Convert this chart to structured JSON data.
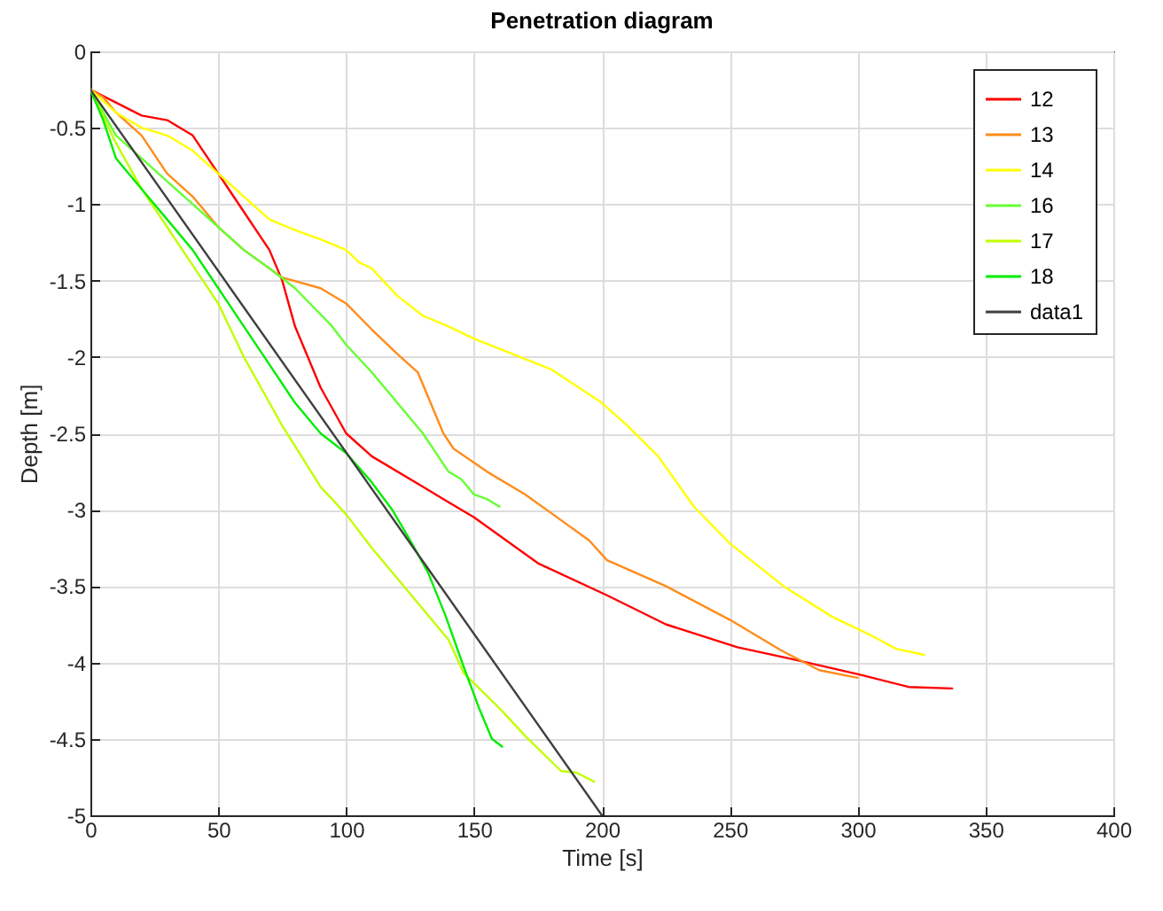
{
  "chart_data": {
    "type": "line",
    "title": "Penetration diagram",
    "xlabel": "Time [s]",
    "ylabel": "Depth [m]",
    "xlim": [
      0,
      400
    ],
    "xticks": [
      0,
      50,
      100,
      150,
      200,
      250,
      300,
      350,
      400
    ],
    "ylim": [
      -5,
      0
    ],
    "yticks": [
      -5,
      -4.5,
      -4,
      -3.5,
      -3,
      -2.5,
      -2,
      -1.5,
      -1,
      -0.5,
      0
    ],
    "grid": true,
    "legend": "top right",
    "line_style": "solid",
    "series": [
      {
        "name": "12",
        "color": "#ff0000",
        "x": [
          0,
          20,
          30,
          40,
          50,
          60,
          70,
          75,
          80,
          90,
          100,
          110,
          130,
          150,
          175,
          202,
          225,
          253,
          275,
          301,
          320,
          337
        ],
        "values": [
          -0.25,
          -0.42,
          -0.45,
          -0.55,
          -0.8,
          -1.05,
          -1.3,
          -1.5,
          -1.8,
          -2.2,
          -2.5,
          -2.65,
          -2.85,
          -3.05,
          -3.35,
          -3.56,
          -3.75,
          -3.9,
          -3.98,
          -4.08,
          -4.16,
          -4.17
        ]
      },
      {
        "name": "13",
        "color": "#ff8c1a",
        "x": [
          0,
          5,
          10,
          20,
          30,
          40,
          50,
          60,
          75,
          90,
          100,
          110,
          120,
          128,
          133,
          138,
          142,
          155,
          170,
          180,
          195,
          202,
          225,
          250,
          270,
          285,
          300
        ],
        "values": [
          -0.25,
          -0.3,
          -0.4,
          -0.55,
          -0.8,
          -0.95,
          -1.15,
          -1.3,
          -1.48,
          -1.55,
          -1.65,
          -1.82,
          -1.98,
          -2.1,
          -2.3,
          -2.5,
          -2.6,
          -2.75,
          -2.9,
          -3.02,
          -3.2,
          -3.33,
          -3.5,
          -3.72,
          -3.92,
          -4.05,
          -4.1
        ]
      },
      {
        "name": "14",
        "color": "#ffff00",
        "x": [
          0,
          10,
          20,
          30,
          40,
          50,
          60,
          70,
          80,
          90,
          100,
          105,
          110,
          120,
          130,
          140,
          150,
          165,
          180,
          200,
          210,
          222,
          236,
          250,
          271,
          290,
          305,
          315,
          326
        ],
        "values": [
          -0.25,
          -0.4,
          -0.5,
          -0.55,
          -0.65,
          -0.8,
          -0.95,
          -1.1,
          -1.17,
          -1.23,
          -1.3,
          -1.38,
          -1.42,
          -1.6,
          -1.73,
          -1.8,
          -1.88,
          -1.98,
          -2.08,
          -2.3,
          -2.45,
          -2.65,
          -2.98,
          -3.22,
          -3.5,
          -3.7,
          -3.82,
          -3.91,
          -3.95
        ]
      },
      {
        "name": "16",
        "color": "#66ff33",
        "x": [
          0,
          10,
          20,
          30,
          40,
          50,
          60,
          70,
          80,
          94,
          100,
          110,
          120,
          130,
          140,
          145,
          150,
          155,
          160
        ],
        "values": [
          -0.25,
          -0.55,
          -0.7,
          -0.85,
          -1.0,
          -1.15,
          -1.3,
          -1.42,
          -1.55,
          -1.79,
          -1.92,
          -2.1,
          -2.3,
          -2.5,
          -2.75,
          -2.8,
          -2.9,
          -2.93,
          -2.98
        ]
      },
      {
        "name": "17",
        "color": "#c0ff00",
        "x": [
          0,
          10,
          20,
          30,
          40,
          50,
          60,
          70,
          75,
          90,
          100,
          110,
          120,
          130,
          140,
          146,
          160,
          170,
          184,
          190,
          197
        ],
        "values": [
          -0.25,
          -0.6,
          -0.9,
          -1.15,
          -1.4,
          -1.65,
          -2.0,
          -2.3,
          -2.45,
          -2.85,
          -3.03,
          -3.25,
          -3.45,
          -3.65,
          -3.85,
          -4.07,
          -4.3,
          -4.48,
          -4.71,
          -4.72,
          -4.78
        ]
      },
      {
        "name": "18",
        "color": "#00ee00",
        "x": [
          0,
          5,
          10,
          15,
          20,
          30,
          40,
          50,
          60,
          70,
          80,
          90,
          100,
          110,
          118,
          125,
          132,
          139,
          146,
          152,
          157,
          161
        ],
        "values": [
          -0.25,
          -0.45,
          -0.7,
          -0.8,
          -0.9,
          -1.1,
          -1.3,
          -1.55,
          -1.8,
          -2.05,
          -2.3,
          -2.5,
          -2.63,
          -2.82,
          -3.0,
          -3.2,
          -3.41,
          -3.7,
          -4.03,
          -4.3,
          -4.5,
          -4.55
        ]
      },
      {
        "name": "data1",
        "color": "#404040",
        "x": [
          0,
          200
        ],
        "values": [
          -0.25,
          -5
        ]
      }
    ]
  }
}
